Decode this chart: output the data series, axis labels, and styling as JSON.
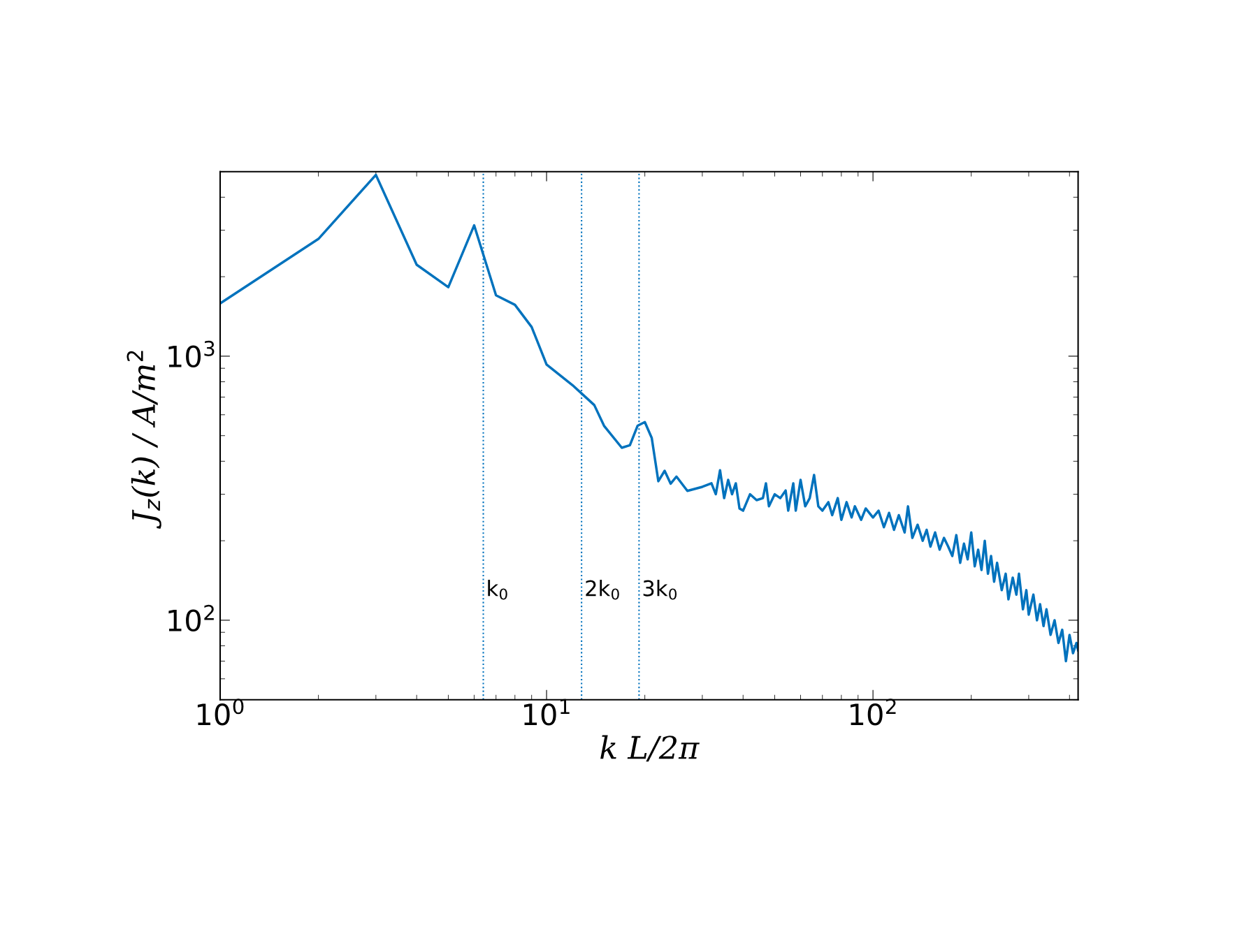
{
  "chart_data": {
    "type": "line",
    "xlabel": "k L/2π",
    "ylabel": "J$_{z}$(k) / A/m$^{2}$",
    "log": "xy",
    "grid": false,
    "xlim": [
      1,
      425
    ],
    "ylim": [
      50,
      5000
    ],
    "xticks": [
      {
        "value": 1,
        "label": "10$^{0}$"
      },
      {
        "value": 10,
        "label": "10$^{1}$"
      },
      {
        "value": 100,
        "label": "10$^{2}$"
      }
    ],
    "yticks": [
      {
        "value": 100,
        "label": "10$^{2}$"
      },
      {
        "value": 1000,
        "label": "10$^{3}$"
      }
    ],
    "ref_lines": [
      {
        "axis": "x",
        "value": 6.4,
        "label": "k$_{0}$",
        "color": "#0072bd",
        "line_style": "dotted"
      },
      {
        "axis": "x",
        "value": 12.8,
        "label": "2k$_{0}$",
        "color": "#0072bd",
        "line_style": "dotted"
      },
      {
        "axis": "x",
        "value": 19.2,
        "label": "3k$_{0}$",
        "color": "#0072bd",
        "line_style": "dotted"
      }
    ],
    "series": [
      {
        "color": "#0072bd",
        "x": [
          1,
          2,
          3,
          4,
          5,
          6,
          7,
          8,
          9,
          10,
          12,
          13,
          14,
          15,
          17,
          18,
          19,
          20,
          21,
          22,
          23,
          24,
          25,
          27,
          30,
          32,
          33,
          34,
          35,
          36,
          37,
          38,
          39,
          40,
          42,
          44,
          46,
          47,
          48,
          50,
          52,
          54,
          55,
          57,
          58,
          60,
          62,
          64,
          66,
          68,
          70,
          73,
          75,
          78,
          80,
          83,
          86,
          88,
          92,
          95,
          100,
          104,
          108,
          112,
          116,
          120,
          125,
          128,
          132,
          137,
          142,
          146,
          150,
          155,
          160,
          165,
          170,
          175,
          180,
          185,
          190,
          195,
          200,
          205,
          210,
          215,
          220,
          225,
          230,
          235,
          240,
          248,
          255,
          260,
          268,
          275,
          280,
          288,
          295,
          300,
          310,
          318,
          325,
          333,
          340,
          350,
          360,
          370,
          380,
          390,
          400,
          410,
          420,
          425
        ],
        "values": [
          1585,
          2780,
          4860,
          2220,
          1825,
          3130,
          1700,
          1565,
          1290,
          930,
          777,
          710,
          653,
          545,
          450,
          460,
          545,
          563,
          490,
          336,
          368,
          329,
          350,
          309,
          320,
          330,
          300,
          370,
          290,
          340,
          300,
          330,
          265,
          260,
          300,
          285,
          290,
          330,
          270,
          300,
          290,
          310,
          260,
          330,
          260,
          340,
          270,
          290,
          355,
          270,
          260,
          280,
          250,
          290,
          240,
          280,
          245,
          270,
          240,
          265,
          245,
          260,
          225,
          255,
          220,
          250,
          215,
          270,
          205,
          230,
          200,
          220,
          190,
          215,
          185,
          205,
          190,
          175,
          210,
          165,
          195,
          170,
          215,
          160,
          185,
          155,
          200,
          150,
          175,
          140,
          165,
          130,
          150,
          120,
          145,
          125,
          150,
          110,
          130,
          105,
          125,
          100,
          115,
          95,
          110,
          88,
          100,
          82,
          92,
          70,
          88,
          75,
          82,
          77
        ]
      }
    ]
  }
}
